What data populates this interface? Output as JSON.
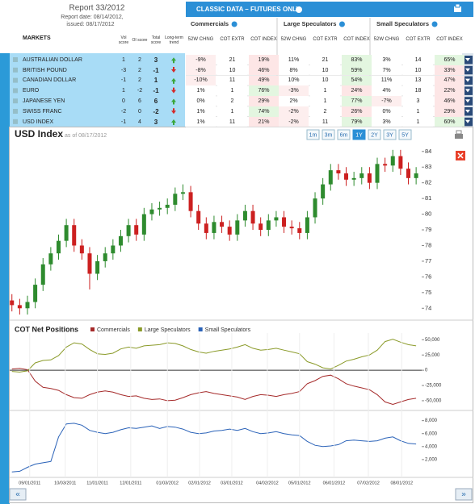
{
  "header": {
    "report": "Report 33/2012",
    "report_date": "Report date: 08/14/2012,",
    "issued": "issued: 08/17/2012"
  },
  "table": {
    "title": "CLASSIC DATA – FUTURES ONLY",
    "groups": [
      "Commercials",
      "Large Speculators",
      "Small Speculators"
    ],
    "columns": [
      "MARKETS",
      "Vol score",
      "OI score",
      "Total score",
      "Long-term trend",
      "52W CHNG",
      "COT EXTR",
      "COT INDEX"
    ],
    "rows": [
      {
        "market": "AUSTRALIAN DOLLAR",
        "vol": 1,
        "oi": 2,
        "total": 3,
        "trend": "up",
        "cells": [
          "-9%",
          21,
          "19%",
          "11%",
          21,
          "83%",
          "3%",
          14,
          "65%"
        ]
      },
      {
        "market": "BRITISH POUND",
        "vol": -3,
        "oi": 2,
        "total": -1,
        "trend": "down",
        "cells": [
          "-8%",
          10,
          "46%",
          "8%",
          10,
          "59%",
          "7%",
          10,
          "33%"
        ]
      },
      {
        "market": "CANADIAN DOLLAR",
        "vol": -1,
        "oi": 2,
        "total": 1,
        "trend": "up",
        "cells": [
          "-10%",
          11,
          "49%",
          "10%",
          10,
          "54%",
          "11%",
          13,
          "47%"
        ]
      },
      {
        "market": "EURO",
        "vol": 1,
        "oi": -2,
        "total": -1,
        "trend": "down",
        "cells": [
          "1%",
          1,
          "76%",
          "-3%",
          1,
          "24%",
          "4%",
          18,
          "22%"
        ]
      },
      {
        "market": "JAPANESE YEN",
        "vol": 0,
        "oi": 6,
        "total": 6,
        "trend": "up",
        "cells": [
          "0%",
          2,
          "29%",
          "2%",
          1,
          "77%",
          "-7%",
          3,
          "46%"
        ]
      },
      {
        "market": "SWISS FRANC",
        "vol": -2,
        "oi": 0,
        "total": -2,
        "trend": "down",
        "cells": [
          "1%",
          1,
          "74%",
          "-2%",
          2,
          "26%",
          "0%",
          1,
          "29%"
        ]
      },
      {
        "market": "USD INDEX",
        "vol": -1,
        "oi": 4,
        "total": 3,
        "trend": "up",
        "cells": [
          "1%",
          11,
          "21%",
          "-2%",
          11,
          "79%",
          "3%",
          1,
          "60%"
        ]
      }
    ]
  },
  "chart_data": [
    {
      "type": "candlestick",
      "title": "USD Index",
      "subtitle": "as of 08/17/2012",
      "ranges": [
        "1m",
        "3m",
        "6m",
        "1Y",
        "2Y",
        "3Y",
        "5Y"
      ],
      "active_range": "1Y",
      "x": [
        "08/16/2011",
        "08/23/2011",
        "08/30/2011",
        "09/06/2011",
        "09/13/2011",
        "09/20/2011",
        "09/27/2011",
        "10/04/2011",
        "10/11/2011",
        "10/18/2011",
        "10/25/2011",
        "11/01/2011",
        "11/08/2011",
        "11/15/2011",
        "11/22/2011",
        "11/29/2011",
        "12/06/2011",
        "12/13/2011",
        "12/20/2011",
        "12/27/2011",
        "01/03/2012",
        "01/10/2012",
        "01/17/2012",
        "01/24/2012",
        "01/31/2012",
        "02/07/2012",
        "02/14/2012",
        "02/21/2012",
        "02/28/2012",
        "03/06/2012",
        "03/13/2012",
        "03/20/2012",
        "03/27/2012",
        "04/03/2012",
        "04/10/2012",
        "04/17/2012",
        "04/24/2012",
        "05/01/2012",
        "05/08/2012",
        "05/15/2012",
        "05/22/2012",
        "05/29/2012",
        "06/05/2012",
        "06/12/2012",
        "06/19/2012",
        "06/26/2012",
        "07/03/2012",
        "07/10/2012",
        "07/17/2012",
        "07/24/2012",
        "07/31/2012",
        "08/07/2012",
        "08/14/2012"
      ],
      "open": [
        74.5,
        74.2,
        74.0,
        74.4,
        75.5,
        76.8,
        77.5,
        78.3,
        79.3,
        78.0,
        77.5,
        76.2,
        77.0,
        77.5,
        78.0,
        78.6,
        79.3,
        78.7,
        80.0,
        80.3,
        80.4,
        80.6,
        81.3,
        81.4,
        80.2,
        79.4,
        78.8,
        79.5,
        79.2,
        78.7,
        79.6,
        80.2,
        79.4,
        79.0,
        79.6,
        79.8,
        79.2,
        79.1,
        78.8,
        79.8,
        81.0,
        81.9,
        82.8,
        82.6,
        82.2,
        82.3,
        82.6,
        82.0,
        83.2,
        83.1,
        83.7,
        82.9,
        82.3
      ],
      "high": [
        74.9,
        74.6,
        74.8,
        75.9,
        77.2,
        77.9,
        78.7,
        79.7,
        79.7,
        78.4,
        77.9,
        77.4,
        77.9,
        78.4,
        79.0,
        79.7,
        79.7,
        80.4,
        80.7,
        80.8,
        81.0,
        81.7,
        81.9,
        81.8,
        80.6,
        79.8,
        79.9,
        79.9,
        79.6,
        80.0,
        80.6,
        80.6,
        79.8,
        80.0,
        80.2,
        80.2,
        79.6,
        79.5,
        80.2,
        81.4,
        82.3,
        83.2,
        83.2,
        83.0,
        82.7,
        83.0,
        83.0,
        83.6,
        83.6,
        84.1,
        84.1,
        83.3,
        83.0
      ],
      "low": [
        73.8,
        73.6,
        73.6,
        74.0,
        75.1,
        76.4,
        77.1,
        77.9,
        77.6,
        77.1,
        75.2,
        75.8,
        76.6,
        77.1,
        77.6,
        78.2,
        78.3,
        78.3,
        79.6,
        79.9,
        80.0,
        80.2,
        80.9,
        79.8,
        79.0,
        78.4,
        78.4,
        78.8,
        78.3,
        78.3,
        79.2,
        79.0,
        78.6,
        78.6,
        79.2,
        78.8,
        78.7,
        78.4,
        78.4,
        79.4,
        80.6,
        81.5,
        82.2,
        81.8,
        81.8,
        81.9,
        81.6,
        81.6,
        82.7,
        82.7,
        82.5,
        81.9,
        81.9
      ],
      "close": [
        74.2,
        74.0,
        74.4,
        75.5,
        76.8,
        77.5,
        78.3,
        79.3,
        78.0,
        77.5,
        76.2,
        77.0,
        77.5,
        78.0,
        78.6,
        79.3,
        78.7,
        80.0,
        80.3,
        80.4,
        80.6,
        81.3,
        81.4,
        80.2,
        79.4,
        78.8,
        79.5,
        79.2,
        78.7,
        79.6,
        80.2,
        79.4,
        79.0,
        79.6,
        79.8,
        79.2,
        79.1,
        78.8,
        79.8,
        81.0,
        81.9,
        82.8,
        82.6,
        82.2,
        82.3,
        82.6,
        82.0,
        83.2,
        83.1,
        83.7,
        82.9,
        82.3,
        82.6
      ],
      "up_color": "#2e8b2e",
      "down_color": "#cc2020",
      "xlim": [
        "08/14/2011",
        "08/19/2012"
      ],
      "ylim": [
        73.5,
        84.4
      ],
      "yticks": [
        74,
        75,
        76,
        77,
        78,
        79,
        80,
        81,
        82,
        83,
        84
      ]
    },
    {
      "type": "line",
      "title": "COT Net Positions",
      "series": [
        {
          "name": "Commercials",
          "color": "#a52a2a",
          "values": [
            2000,
            3000,
            1000,
            -18000,
            -28000,
            -30000,
            -33000,
            -40000,
            -45000,
            -46000,
            -40000,
            -36000,
            -34000,
            -36000,
            -40000,
            -43000,
            -42000,
            -46000,
            -48000,
            -47000,
            -50000,
            -49000,
            -45000,
            -40000,
            -37000,
            -35000,
            -38000,
            -40000,
            -42000,
            -44000,
            -48000,
            -43000,
            -40000,
            -41000,
            -43000,
            -40000,
            -38000,
            -35000,
            -22000,
            -17000,
            -10000,
            -8000,
            -14000,
            -22000,
            -26000,
            -29000,
            -32000,
            -40000,
            -52000,
            -56000,
            -52000,
            -48000,
            -46000
          ]
        },
        {
          "name": "Large Speculators",
          "color": "#8a9a28",
          "values": [
            -2000,
            -3000,
            -1000,
            12000,
            16000,
            17000,
            24000,
            38000,
            45000,
            43000,
            34000,
            27000,
            26000,
            28000,
            35000,
            38000,
            36000,
            40000,
            41000,
            42000,
            45000,
            44000,
            40000,
            34000,
            30000,
            28000,
            31000,
            33000,
            35000,
            38000,
            42000,
            36000,
            33000,
            34000,
            36000,
            33000,
            30000,
            27000,
            14000,
            10000,
            4000,
            2000,
            8000,
            15000,
            18000,
            22000,
            25000,
            33000,
            47000,
            51000,
            46000,
            42000,
            40000
          ]
        }
      ],
      "ylim": [
        -62000,
        61000
      ],
      "yticks": [
        {
          "value": 50000,
          "label": "50,000"
        },
        {
          "value": 25000,
          "label": "25,000"
        },
        0,
        {
          "value": -25000,
          "label": "-25,000"
        },
        {
          "value": -50000,
          "label": "-50,000"
        }
      ]
    },
    {
      "type": "line",
      "series": [
        {
          "name": "Small Speculators",
          "color": "#2a62b8",
          "values": [
            100,
            200,
            800,
            1300,
            1500,
            1700,
            5500,
            7500,
            7600,
            7300,
            6500,
            6200,
            6000,
            6200,
            6600,
            6900,
            6800,
            7000,
            7200,
            6800,
            7100,
            7000,
            6700,
            6200,
            6000,
            6100,
            6400,
            6500,
            6700,
            6500,
            6800,
            6300,
            6000,
            6100,
            6300,
            6000,
            5800,
            5700,
            4800,
            4200,
            4000,
            4100,
            4300,
            4900,
            5000,
            4900,
            4800,
            4900,
            5300,
            5500,
            4900,
            4500,
            4400
          ]
        }
      ],
      "ylim": [
        -500,
        9200
      ],
      "yticks": [
        {
          "value": 8000,
          "label": "8,000"
        },
        {
          "value": 6000,
          "label": "6,000"
        },
        {
          "value": 4000,
          "label": "4,000"
        },
        {
          "value": 2000,
          "label": "2,000"
        }
      ],
      "xticks": [
        "09/01/2011",
        "10/03/2011",
        "11/01/2011",
        "12/01/2011",
        "01/03/2012",
        "02/01/2012",
        "03/01/2012",
        "04/02/2012",
        "05/01/2012",
        "06/01/2012",
        "07/02/2012",
        "08/01/2012"
      ]
    }
  ],
  "navigation": {
    "prev": "«",
    "next": "»"
  }
}
